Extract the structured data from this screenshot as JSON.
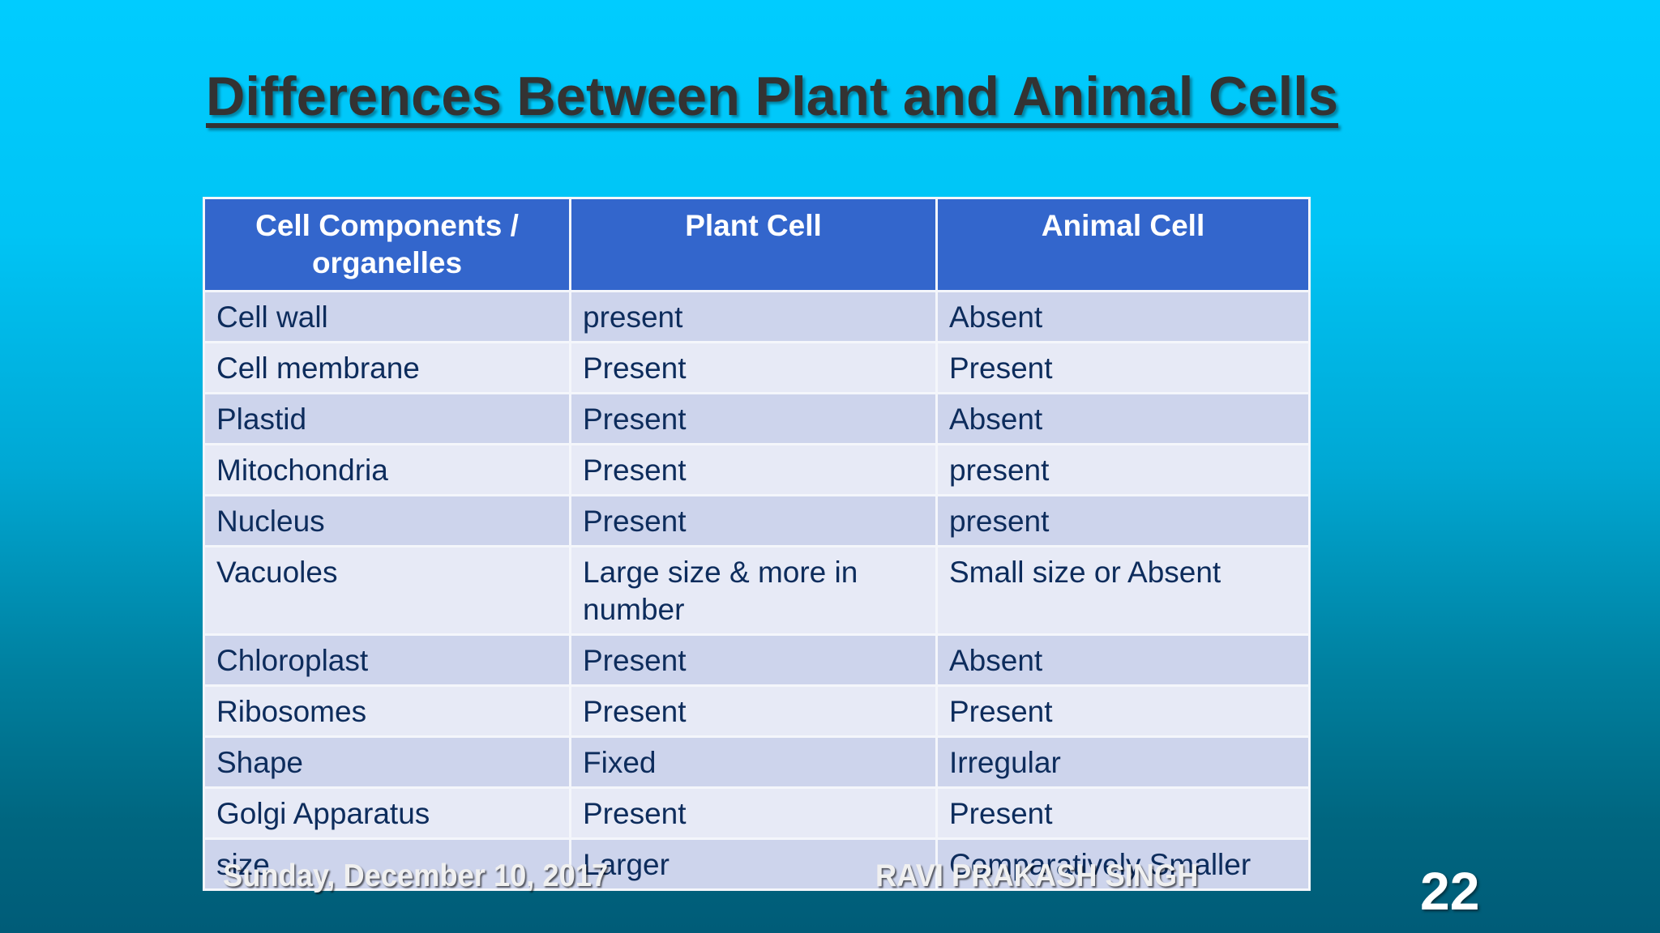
{
  "slide": {
    "title": "Differences Between Plant and Animal Cells",
    "background_colors": {
      "top": "#00ccff",
      "bottom": "#005c78"
    },
    "header_color": "#3366cc",
    "row_colors": {
      "odd": "#cdd4ec",
      "even": "#e7eaf6"
    },
    "text_color": "#0d2c5c"
  },
  "table": {
    "headers": [
      "Cell Components / organelles",
      "Plant Cell",
      "Animal Cell"
    ],
    "rows": [
      [
        "Cell wall",
        "present",
        "Absent"
      ],
      [
        "Cell membrane",
        "Present",
        "Present"
      ],
      [
        "Plastid",
        "Present",
        "Absent"
      ],
      [
        "Mitochondria",
        "Present",
        "present"
      ],
      [
        "Nucleus",
        "Present",
        "present"
      ],
      [
        "Vacuoles",
        "Large size & more in number",
        "Small size or Absent"
      ],
      [
        "Chloroplast",
        "Present",
        "Absent"
      ],
      [
        "Ribosomes",
        "Present",
        "Present"
      ],
      [
        "Shape",
        "Fixed",
        "Irregular"
      ],
      [
        "Golgi Apparatus",
        "Present",
        "Present"
      ],
      [
        "size",
        "Larger",
        "Comparatively Smaller"
      ]
    ]
  },
  "footer": {
    "date": "Sunday, December 10, 2017",
    "author": "RAVI PRAKASH SINGH",
    "slide_number": "22"
  }
}
